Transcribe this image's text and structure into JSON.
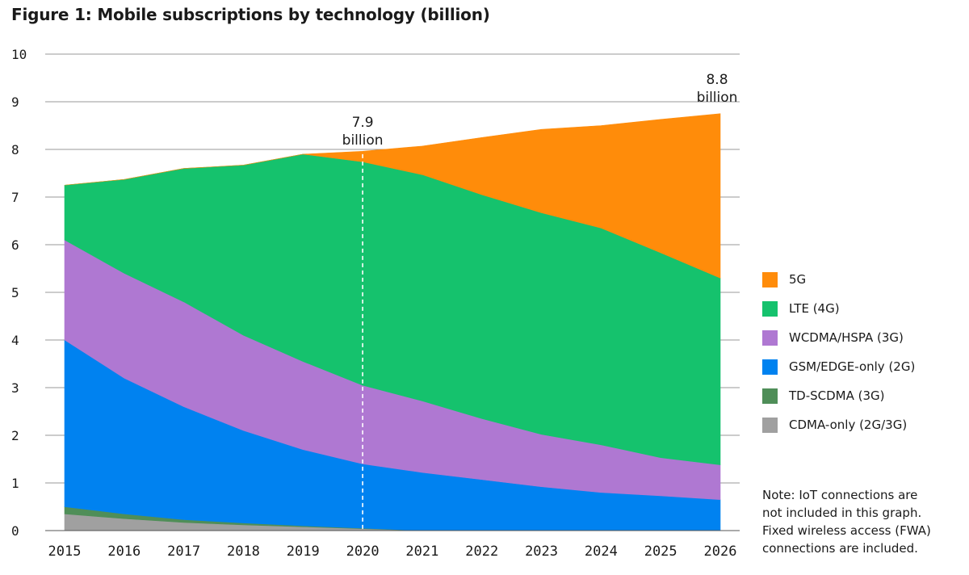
{
  "chart_data": {
    "type": "area",
    "stacked": true,
    "title": "Figure 1: Mobile subscriptions by technology (billion)",
    "xlabel": "",
    "ylabel": "",
    "categories": [
      "2015",
      "2016",
      "2017",
      "2018",
      "2019",
      "2020",
      "2021",
      "2022",
      "2023",
      "2024",
      "2025",
      "2026"
    ],
    "ylim": [
      0,
      10
    ],
    "yticks": [
      "0",
      "1",
      "2",
      "3",
      "4",
      "5",
      "6",
      "7",
      "8",
      "9",
      "10"
    ],
    "grid": true,
    "legend_position": "right",
    "series": [
      {
        "name": "CDMA-only (2G/3G)",
        "color": "#a0a0a0",
        "values": [
          0.35,
          0.25,
          0.17,
          0.12,
          0.08,
          0.04,
          0.0,
          0.0,
          0.0,
          0.0,
          0.0,
          0.0
        ]
      },
      {
        "name": "TD-SCDMA (3G)",
        "color": "#4f8e58",
        "values": [
          0.15,
          0.1,
          0.06,
          0.04,
          0.02,
          0.01,
          0.0,
          0.0,
          0.0,
          0.0,
          0.0,
          0.0
        ]
      },
      {
        "name": "GSM/EDGE-only (2G)",
        "color": "#0082f0",
        "values": [
          3.5,
          2.85,
          2.37,
          1.94,
          1.6,
          1.35,
          1.22,
          1.07,
          0.92,
          0.8,
          0.73,
          0.65
        ]
      },
      {
        "name": "WCDMA/HSPA (3G)",
        "color": "#af78d2",
        "values": [
          2.1,
          2.2,
          2.2,
          2.0,
          1.85,
          1.65,
          1.5,
          1.28,
          1.1,
          1.0,
          0.8,
          0.73
        ]
      },
      {
        "name": "LTE (4G)",
        "color": "#15c26d",
        "values": [
          1.15,
          1.97,
          2.8,
          3.57,
          4.35,
          4.69,
          4.75,
          4.7,
          4.65,
          4.55,
          4.3,
          3.92
        ]
      },
      {
        "name": "5G",
        "color": "#ff8c0a",
        "values": [
          0.0,
          0.0,
          0.0,
          0.0,
          0.0,
          0.22,
          0.6,
          1.2,
          1.75,
          2.15,
          2.8,
          3.45
        ]
      }
    ],
    "legend_order": [
      "5G",
      "LTE (4G)",
      "WCDMA/HSPA (3G)",
      "GSM/EDGE-only (2G)",
      "TD-SCDMA (3G)",
      "CDMA-only (2G/3G)"
    ],
    "annotations": [
      {
        "year": "2020",
        "value": 7.9,
        "line1": "7.9",
        "line2": "billion",
        "dashed_line": true
      },
      {
        "year": "2026",
        "value": 8.8,
        "line1": "8.8",
        "line2": "billion",
        "dashed_line": false
      }
    ]
  },
  "note": {
    "lines": [
      "Note: IoT connections are",
      "not included in this graph.",
      "Fixed wireless access (FWA)",
      "connections are included."
    ]
  }
}
